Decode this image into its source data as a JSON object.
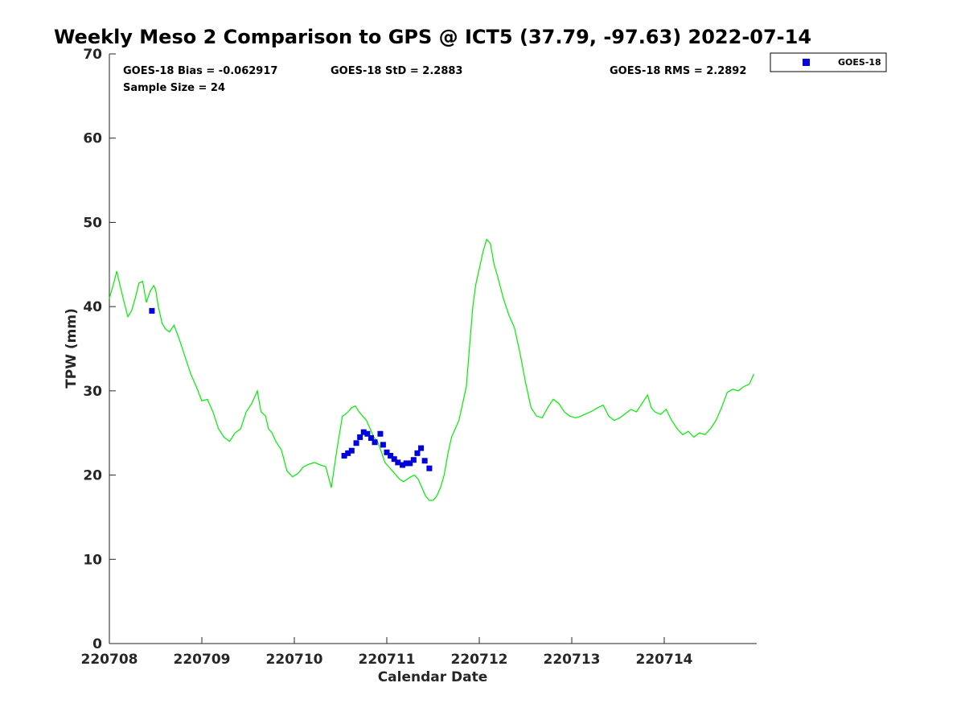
{
  "chart_data": {
    "type": "scatter",
    "title": "Weekly Meso 2 Comparison to GPS @ ICT5 (37.79, -97.63) 2022-07-14",
    "xlabel": "Calendar Date",
    "ylabel": "TPW (mm)",
    "xlim": [
      0,
      7
    ],
    "ylim": [
      0,
      70
    ],
    "x_ticks": [
      0,
      1,
      2,
      3,
      4,
      5,
      6
    ],
    "x_tick_labels": [
      "220708",
      "220709",
      "220710",
      "220711",
      "220712",
      "220713",
      "220714"
    ],
    "y_ticks": [
      0,
      10,
      20,
      30,
      40,
      50,
      60,
      70
    ],
    "y_tick_labels": [
      "0",
      "10",
      "20",
      "30",
      "40",
      "50",
      "60",
      "70"
    ],
    "grid": false,
    "legend_position": "top-right outside",
    "stats": {
      "bias": "GOES-18 Bias = -0.062917",
      "std": "GOES-18 StD = 2.2883",
      "rms": "GOES-18 RMS = 2.2892",
      "sample": "Sample Size = 24"
    },
    "colors": {
      "line": "#00ee00",
      "points": "#0000dd",
      "axis": "#262626"
    },
    "series": [
      {
        "kind": "line",
        "x": [
          0.0,
          0.04,
          0.08,
          0.12,
          0.16,
          0.2,
          0.24,
          0.28,
          0.32,
          0.36,
          0.4,
          0.44,
          0.48,
          0.5,
          0.53,
          0.57,
          0.61,
          0.65,
          0.7,
          0.76,
          0.82,
          0.88,
          0.94,
          1.0,
          1.06,
          1.12,
          1.18,
          1.24,
          1.3,
          1.36,
          1.42,
          1.48,
          1.54,
          1.6,
          1.64,
          1.69,
          1.72,
          1.76,
          1.8,
          1.86,
          1.92,
          1.98,
          2.04,
          2.1,
          2.16,
          2.22,
          2.28,
          2.34,
          2.4,
          2.46,
          2.52,
          2.55,
          2.58,
          2.62,
          2.66,
          2.7,
          2.74,
          2.78,
          2.82,
          2.86,
          2.9,
          2.94,
          2.98,
          3.02,
          3.06,
          3.1,
          3.14,
          3.18,
          3.22,
          3.26,
          3.3,
          3.34,
          3.38,
          3.42,
          3.46,
          3.5,
          3.54,
          3.58,
          3.62,
          3.66,
          3.7,
          3.74,
          3.78,
          3.82,
          3.86,
          3.9,
          3.93,
          3.96,
          4.0,
          4.04,
          4.08,
          4.12,
          4.16,
          4.2,
          4.26,
          4.32,
          4.38,
          4.44,
          4.5,
          4.56,
          4.62,
          4.68,
          4.74,
          4.8,
          4.86,
          4.92,
          4.98,
          5.04,
          5.1,
          5.16,
          5.22,
          5.28,
          5.34,
          5.4,
          5.46,
          5.52,
          5.58,
          5.64,
          5.7,
          5.76,
          5.82,
          5.86,
          5.9,
          5.96,
          6.02,
          6.08,
          6.14,
          6.2,
          6.26,
          6.32,
          6.38,
          6.44,
          6.5,
          6.56,
          6.62,
          6.68,
          6.74,
          6.8,
          6.86,
          6.92,
          6.97
        ],
        "y": [
          41.0,
          42.5,
          44.2,
          42.3,
          40.5,
          38.8,
          39.5,
          41.0,
          42.8,
          43.0,
          40.5,
          41.8,
          42.5,
          42.0,
          40.0,
          38.0,
          37.3,
          37.0,
          37.8,
          36.0,
          34.0,
          32.0,
          30.5,
          28.8,
          29.0,
          27.5,
          25.5,
          24.5,
          24.0,
          25.0,
          25.5,
          27.5,
          28.5,
          30.0,
          27.5,
          27.0,
          25.5,
          25.0,
          24.0,
          23.0,
          20.5,
          19.8,
          20.2,
          21.0,
          21.3,
          21.5,
          21.2,
          21.0,
          18.5,
          23.0,
          27.0,
          27.2,
          27.5,
          28.0,
          28.2,
          27.5,
          27.0,
          26.5,
          25.5,
          24.5,
          24.0,
          22.8,
          21.5,
          21.0,
          20.5,
          20.0,
          19.5,
          19.2,
          19.5,
          19.8,
          20.0,
          19.5,
          18.5,
          17.5,
          17.0,
          17.0,
          17.5,
          18.5,
          20.0,
          22.5,
          24.5,
          25.5,
          26.5,
          28.5,
          30.5,
          36.0,
          40.0,
          42.5,
          44.5,
          46.5,
          48.0,
          47.5,
          45.0,
          43.5,
          41.0,
          39.0,
          37.5,
          34.5,
          31.0,
          28.0,
          27.0,
          26.8,
          28.0,
          29.0,
          28.5,
          27.5,
          27.0,
          26.8,
          27.0,
          27.3,
          27.6,
          28.0,
          28.3,
          27.0,
          26.5,
          26.8,
          27.3,
          27.8,
          27.5,
          28.5,
          29.5,
          28.0,
          27.5,
          27.2,
          27.8,
          26.5,
          25.5,
          24.8,
          25.2,
          24.5,
          25.0,
          24.8,
          25.5,
          26.5,
          28.0,
          29.8,
          30.2,
          30.0,
          30.5,
          30.8,
          32.0
        ]
      },
      {
        "name": "GOES-18",
        "kind": "points",
        "x": [
          0.46,
          2.54,
          2.58,
          2.62,
          2.67,
          2.71,
          2.75,
          2.79,
          2.83,
          2.87,
          2.93,
          2.96,
          3.0,
          3.04,
          3.08,
          3.12,
          3.17,
          3.21,
          3.25,
          3.29,
          3.33,
          3.37,
          3.41,
          3.46
        ],
        "y": [
          39.5,
          22.3,
          22.6,
          22.9,
          23.8,
          24.5,
          25.1,
          24.9,
          24.4,
          23.9,
          24.9,
          23.6,
          22.7,
          22.3,
          21.9,
          21.5,
          21.2,
          21.4,
          21.4,
          21.8,
          22.6,
          23.2,
          21.7,
          20.8
        ]
      }
    ]
  }
}
